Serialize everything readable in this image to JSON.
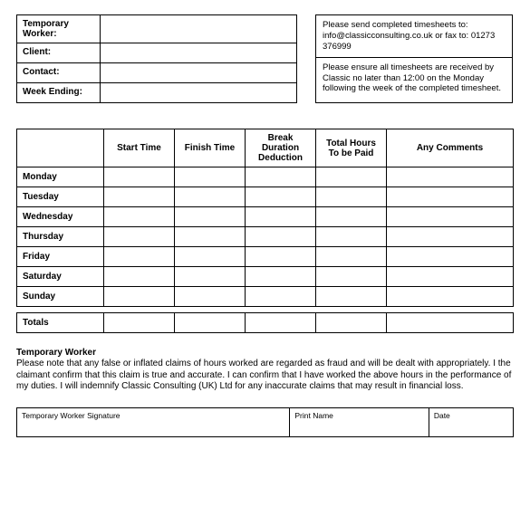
{
  "info_fields": [
    {
      "label": "Temporary Worker:",
      "value": ""
    },
    {
      "label": "Client:",
      "value": ""
    },
    {
      "label": "Contact:",
      "value": ""
    },
    {
      "label": "Week Ending:",
      "value": ""
    }
  ],
  "instructions": {
    "send_to": "Please send completed timesheets to: info@classicconsulting.co.uk or fax to: 01273 376999",
    "deadline": "Please ensure all timesheets are received by     Classic no later than 12:00 on the Monday following the week of the completed timesheet."
  },
  "columns": {
    "day_blank": "",
    "start": "Start Time",
    "finish": "Finish Time",
    "break": "Break Duration Deduction",
    "total": "Total Hours To be Paid",
    "comments": "Any Comments"
  },
  "days": [
    "Monday",
    "Tuesday",
    "Wednesday",
    "Thursday",
    "Friday",
    "Saturday",
    "Sunday"
  ],
  "rows": [
    {
      "start": "",
      "finish": "",
      "break": "",
      "total": "",
      "comments": ""
    },
    {
      "start": "",
      "finish": "",
      "break": "",
      "total": "",
      "comments": ""
    },
    {
      "start": "",
      "finish": "",
      "break": "",
      "total": "",
      "comments": ""
    },
    {
      "start": "",
      "finish": "",
      "break": "",
      "total": "",
      "comments": ""
    },
    {
      "start": "",
      "finish": "",
      "break": "",
      "total": "",
      "comments": ""
    },
    {
      "start": "",
      "finish": "",
      "break": "",
      "total": "",
      "comments": ""
    },
    {
      "start": "",
      "finish": "",
      "break": "",
      "total": "",
      "comments": ""
    }
  ],
  "totals": {
    "label": "Totals",
    "start": "",
    "finish": "",
    "break": "",
    "total": "",
    "comments": ""
  },
  "declaration": {
    "heading": "Temporary Worker",
    "body": "Please note that any false or inflated claims of hours worked are regarded as fraud and will be dealt with appropriately. I the claimant confirm that this claim is true and accurate. I can confirm that I have worked the above hours in the performance of my duties. I will indemnify Classic Consulting (UK) Ltd for any inaccurate claims that may result in financial loss."
  },
  "signature": {
    "sig_label": "Temporary Worker Signature",
    "name_label": "Print Name",
    "date_label": "Date"
  }
}
